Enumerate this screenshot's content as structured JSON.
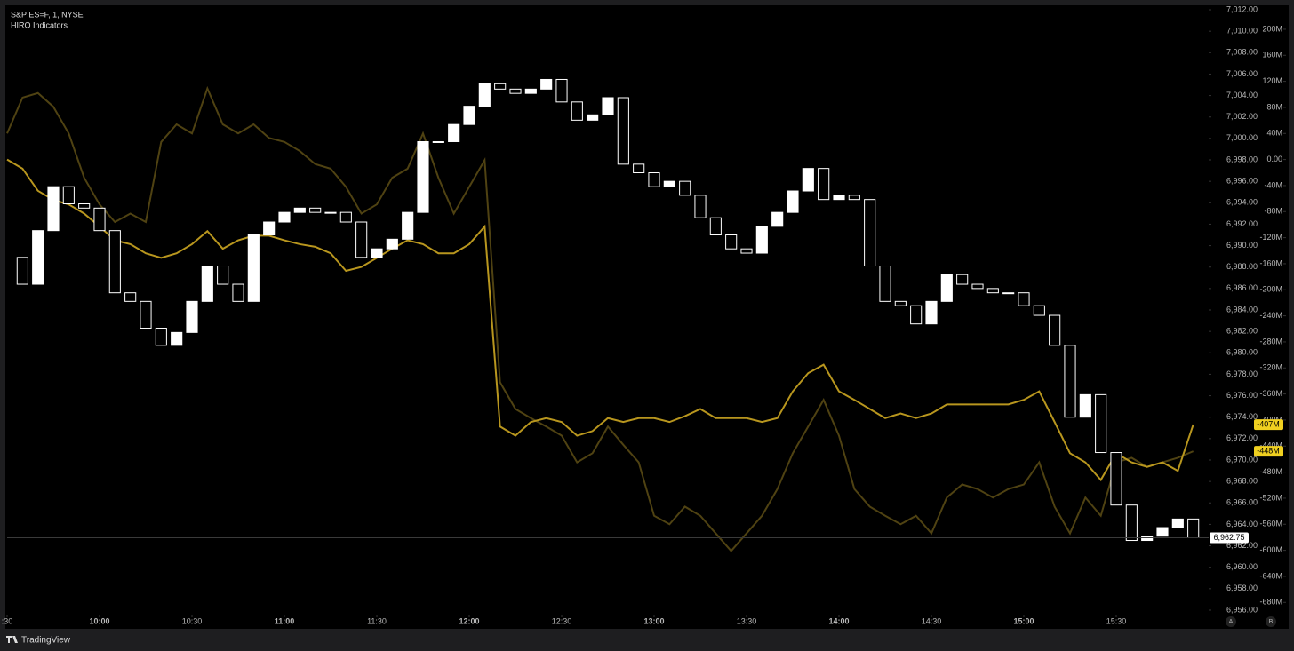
{
  "header": {
    "symbol": "S&P ES=F, 1, NYSE",
    "indicator": "HIRO Indicators"
  },
  "footer": {
    "brand": "TradingView",
    "button_a": "A",
    "button_b": "B"
  },
  "chart_data": {
    "type": "candle-line",
    "xlim": [
      0,
      390
    ],
    "xticks": [
      {
        "value": 0,
        "label": ":30"
      },
      {
        "value": 30,
        "label": "10:00"
      },
      {
        "value": 60,
        "label": "10:30"
      },
      {
        "value": 90,
        "label": "11:00"
      },
      {
        "value": 120,
        "label": "11:30"
      },
      {
        "value": 150,
        "label": "12:00"
      },
      {
        "value": 180,
        "label": "12:30"
      },
      {
        "value": 210,
        "label": "13:00"
      },
      {
        "value": 240,
        "label": "13:30"
      },
      {
        "value": 270,
        "label": "14:00"
      },
      {
        "value": 300,
        "label": "14:30"
      },
      {
        "value": 330,
        "label": "15:00"
      },
      {
        "value": 360,
        "label": "15:30"
      }
    ],
    "ylim": [
      6955.75,
      7012.25
    ],
    "yticks": [
      {
        "value": 6956,
        "label": "6,956.00"
      },
      {
        "value": 6958,
        "label": "6,958.00"
      },
      {
        "value": 6960,
        "label": "6,960.00"
      },
      {
        "value": 6962,
        "label": "6,962.00"
      },
      {
        "value": 6964,
        "label": "6,964.00"
      },
      {
        "value": 6966,
        "label": "6,966.00"
      },
      {
        "value": 6968,
        "label": "6,968.00"
      },
      {
        "value": 6970,
        "label": "6,970.00"
      },
      {
        "value": 6972,
        "label": "6,972.00"
      },
      {
        "value": 6974,
        "label": "6,974.00"
      },
      {
        "value": 6976,
        "label": "6,976.00"
      },
      {
        "value": 6978,
        "label": "6,978.00"
      },
      {
        "value": 6980,
        "label": "6,980.00"
      },
      {
        "value": 6982,
        "label": "6,982.00"
      },
      {
        "value": 6984,
        "label": "6,984.00"
      },
      {
        "value": 6986,
        "label": "6,986.00"
      },
      {
        "value": 6988,
        "label": "6,988.00"
      },
      {
        "value": 6990,
        "label": "6,990.00"
      },
      {
        "value": 6992,
        "label": "6,992.00"
      },
      {
        "value": 6994,
        "label": "6,994.00"
      },
      {
        "value": 6996,
        "label": "6,996.00"
      },
      {
        "value": 6998,
        "label": "6,998.00"
      },
      {
        "value": 7000,
        "label": "7,000.00"
      },
      {
        "value": 7002,
        "label": "7,002.00"
      },
      {
        "value": 7004,
        "label": "7,004.00"
      },
      {
        "value": 7006,
        "label": "7,006.00"
      },
      {
        "value": 7008,
        "label": "7,008.00"
      },
      {
        "value": 7010,
        "label": "7,010.00"
      },
      {
        "value": 7012,
        "label": "7,012.00"
      }
    ],
    "y2lim": [
      -696,
      234
    ],
    "y2ticks": [
      {
        "value": 200,
        "label": "200M"
      },
      {
        "value": 160,
        "label": "160M"
      },
      {
        "value": 120,
        "label": "120M"
      },
      {
        "value": 80,
        "label": "80M"
      },
      {
        "value": 40,
        "label": "40M"
      },
      {
        "value": 0,
        "label": "0.00"
      },
      {
        "value": -40,
        "label": "-40M"
      },
      {
        "value": -80,
        "label": "-80M"
      },
      {
        "value": -120,
        "label": "-120M"
      },
      {
        "value": -160,
        "label": "-160M"
      },
      {
        "value": -200,
        "label": "-200M"
      },
      {
        "value": -240,
        "label": "-240M"
      },
      {
        "value": -280,
        "label": "-280M"
      },
      {
        "value": -320,
        "label": "-320M"
      },
      {
        "value": -360,
        "label": "-360M"
      },
      {
        "value": -400,
        "label": "-400M"
      },
      {
        "value": -440,
        "label": "-440M"
      },
      {
        "value": -480,
        "label": "-480M"
      },
      {
        "value": -520,
        "label": "-520M"
      },
      {
        "value": -560,
        "label": "-560M"
      },
      {
        "value": -600,
        "label": "-600M"
      },
      {
        "value": -640,
        "label": "-640M"
      },
      {
        "value": -680,
        "label": "-680M"
      }
    ],
    "x": [
      0,
      5,
      10,
      15,
      20,
      25,
      30,
      35,
      40,
      45,
      50,
      55,
      60,
      65,
      70,
      75,
      80,
      85,
      90,
      95,
      100,
      105,
      110,
      115,
      120,
      125,
      130,
      135,
      140,
      145,
      150,
      155,
      160,
      165,
      170,
      175,
      180,
      185,
      190,
      195,
      200,
      205,
      210,
      215,
      220,
      225,
      230,
      235,
      240,
      245,
      250,
      255,
      260,
      265,
      270,
      275,
      280,
      285,
      290,
      295,
      300,
      305,
      310,
      315,
      320,
      325,
      330,
      335,
      340,
      345,
      350,
      355,
      360,
      365,
      370,
      375,
      380,
      385
    ],
    "price": {
      "color": "#ffffff",
      "values": [
        6988.9,
        6986.4,
        6991.4,
        6995.5,
        6993.9,
        6993.5,
        6991.4,
        6985.6,
        6984.8,
        6982.3,
        6980.7,
        6981.9,
        6984.8,
        6988.1,
        6986.4,
        6984.8,
        6991.0,
        6992.2,
        6993.1,
        6993.5,
        6993.1,
        6993.1,
        6992.2,
        6988.9,
        6989.7,
        6990.6,
        6993.1,
        6999.7,
        6999.7,
        7001.3,
        7003.0,
        7005.1,
        7004.6,
        7004.2,
        7004.6,
        7005.5,
        7003.4,
        7001.7,
        7002.2,
        7003.8,
        6997.6,
        6996.8,
        6995.5,
        6996.0,
        6994.7,
        6992.6,
        6991.0,
        6989.7,
        6989.3,
        6991.8,
        6993.1,
        6995.1,
        6997.2,
        6994.3,
        6994.7,
        6994.3,
        6988.1,
        6984.8,
        6984.4,
        6982.7,
        6984.8,
        6987.3,
        6986.4,
        6986.0,
        6985.6,
        6985.6,
        6984.4,
        6983.5,
        6980.7,
        6974.0,
        6976.1,
        6970.7,
        6965.8,
        6962.5,
        6962.9,
        6963.7,
        6964.5,
        6962.75
      ],
      "last_label": "6,962.75"
    },
    "series": [
      {
        "axis": "y2",
        "color": "#b8961e",
        "values": [
          0,
          -14,
          -48,
          -62,
          -69,
          -83,
          -103,
          -124,
          -130,
          -144,
          -151,
          -144,
          -130,
          -110,
          -137,
          -124,
          -117,
          -117,
          -124,
          -130,
          -134,
          -144,
          -171,
          -165,
          -151,
          -137,
          -124,
          -130,
          -144,
          -144,
          -130,
          -103,
          -410,
          -424,
          -403,
          -397,
          -403,
          -424,
          -417,
          -397,
          -403,
          -397,
          -397,
          -403,
          -394,
          -383,
          -397,
          -397,
          -397,
          -403,
          -397,
          -356,
          -328,
          -315,
          -356,
          -369,
          -383,
          -397,
          -390,
          -397,
          -390,
          -376,
          -376,
          -376,
          -376,
          -376,
          -369,
          -356,
          -403,
          -451,
          -465,
          -492,
          -451,
          -465,
          -472,
          -465,
          -478,
          -407
        ],
        "last_label": "-407M"
      },
      {
        "axis": "y2",
        "color": "#4f4212",
        "values": [
          40,
          95,
          102,
          81,
          40,
          -28,
          -69,
          -96,
          -83,
          -96,
          27,
          54,
          40,
          109,
          54,
          40,
          54,
          33,
          27,
          13,
          -7,
          -14,
          -42,
          -83,
          -69,
          -28,
          -14,
          40,
          -28,
          -83,
          -42,
          -1,
          -342,
          -383,
          -397,
          -410,
          -424,
          -465,
          -451,
          -410,
          -438,
          -465,
          -547,
          -560,
          -533,
          -547,
          -574,
          -601,
          -574,
          -547,
          -506,
          -451,
          -410,
          -369,
          -424,
          -506,
          -533,
          -547,
          -560,
          -547,
          -574,
          -519,
          -499,
          -506,
          -519,
          -506,
          -499,
          -465,
          -533,
          -574,
          -519,
          -547,
          -465,
          -458,
          -472,
          -465,
          -458,
          -448
        ],
        "last_label": "-448M"
      }
    ]
  }
}
